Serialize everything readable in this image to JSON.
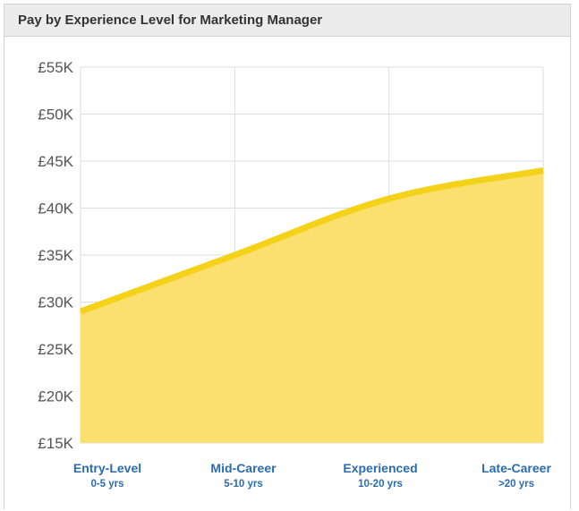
{
  "header": {
    "title": "Pay by Experience Level for Marketing Manager"
  },
  "chart_data": {
    "type": "area",
    "title": "Pay by Experience Level for Marketing Manager",
    "categories": [
      "Entry-Level",
      "Mid-Career",
      "Experienced",
      "Late-Career"
    ],
    "category_sublabels": [
      "0-5 yrs",
      "5-10 yrs",
      "10-20 yrs",
      ">20 yrs"
    ],
    "series": [
      {
        "values": [
          29000,
          35000,
          41000,
          44000
        ]
      }
    ],
    "ylim": [
      15000,
      55000
    ],
    "yticks": [
      15000,
      20000,
      25000,
      30000,
      35000,
      40000,
      45000,
      50000,
      55000
    ],
    "ytick_labels": [
      "£15K",
      "£20K",
      "£25K",
      "£30K",
      "£35K",
      "£40K",
      "£45K",
      "£50K",
      "£55K"
    ],
    "grid": true,
    "colors": {
      "line": "#f5d21a",
      "fill": "#fbe06f",
      "grid": "#dddddd",
      "label": "#2a6cb0"
    }
  }
}
